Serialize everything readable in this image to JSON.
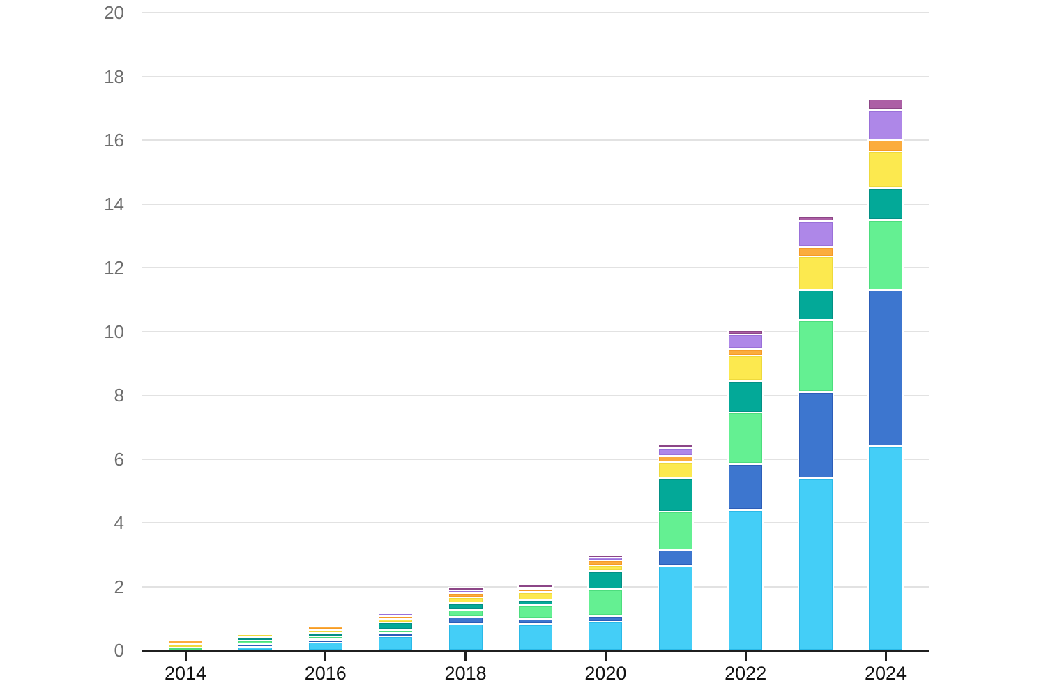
{
  "chart_data": {
    "type": "bar",
    "stacked": true,
    "title": "",
    "xlabel": "",
    "ylabel": "",
    "legend_position": "none",
    "grid": "horizontal",
    "ylim": [
      0,
      20
    ],
    "y_ticks": [
      0,
      2,
      4,
      6,
      8,
      10,
      12,
      14,
      16,
      18,
      20
    ],
    "y_tick_labels": [
      "0",
      "2",
      "4",
      "6",
      "8",
      "10",
      "12",
      "14",
      "16",
      "18",
      "20"
    ],
    "years": [
      2014,
      2015,
      2016,
      2017,
      2018,
      2019,
      2020,
      2021,
      2022,
      2023,
      2024
    ],
    "x_tick_labels": [
      "2014",
      "2016",
      "2018",
      "2020",
      "2022",
      "2024"
    ],
    "x_labeled_year_indices": [
      0,
      2,
      4,
      6,
      8,
      10
    ],
    "series": [
      {
        "name": "light-blue",
        "color": "#44CEF7",
        "border": "#2ab9e8",
        "values": [
          0,
          0.15,
          0.28,
          0.45,
          0.83,
          0.82,
          0.9,
          2.65,
          4.4,
          5.4,
          6.4
        ]
      },
      {
        "name": "blue",
        "color": "#3D76CF",
        "border": "#2c5db8",
        "values": [
          0,
          0.05,
          0.06,
          0.08,
          0.22,
          0.17,
          0.18,
          0.5,
          1.45,
          2.7,
          4.9
        ]
      },
      {
        "name": "green",
        "color": "#64F092",
        "border": "#4cdd7d",
        "values": [
          0.1,
          0.12,
          0.11,
          0.12,
          0.22,
          0.42,
          0.83,
          1.2,
          1.6,
          2.25,
          2.2
        ]
      },
      {
        "name": "teal",
        "color": "#03A998",
        "border": "#029084",
        "values": [
          0,
          0.08,
          0.09,
          0.22,
          0.2,
          0.16,
          0.57,
          1.05,
          1.0,
          0.95,
          1.0
        ]
      },
      {
        "name": "yellow",
        "color": "#FCE94F",
        "border": "#eed93c",
        "values": [
          0.08,
          0.1,
          0.1,
          0.12,
          0.19,
          0.26,
          0.19,
          0.5,
          0.8,
          1.05,
          1.15
        ]
      },
      {
        "name": "orange",
        "color": "#FBAC3D",
        "border": "#f59a26",
        "values": [
          0.15,
          0,
          0.14,
          0.1,
          0.14,
          0.09,
          0.15,
          0.2,
          0.2,
          0.3,
          0.35
        ]
      },
      {
        "name": "light-purple",
        "color": "#AE87E8",
        "border": "#9a70d9",
        "values": [
          0,
          0,
          0,
          0.08,
          0.11,
          0.09,
          0.12,
          0.25,
          0.45,
          0.8,
          0.95
        ]
      },
      {
        "name": "plum",
        "color": "#AC5FA5",
        "border": "#8c4687",
        "values": [
          0,
          0,
          0,
          0,
          0.06,
          0.06,
          0.07,
          0.1,
          0.15,
          0.15,
          0.35
        ]
      }
    ],
    "totals": [
      0.33,
      0.5,
      0.78,
      1.17,
      1.97,
      2.07,
      3.0,
      6.45,
      10.05,
      13.6,
      17.3
    ],
    "colors": {
      "background": "#ffffff",
      "gridline": "#e2e2e2",
      "axis": "#1f1f1f",
      "y_tick_label": "#6e6e6e",
      "x_tick_label": "#111111"
    }
  }
}
